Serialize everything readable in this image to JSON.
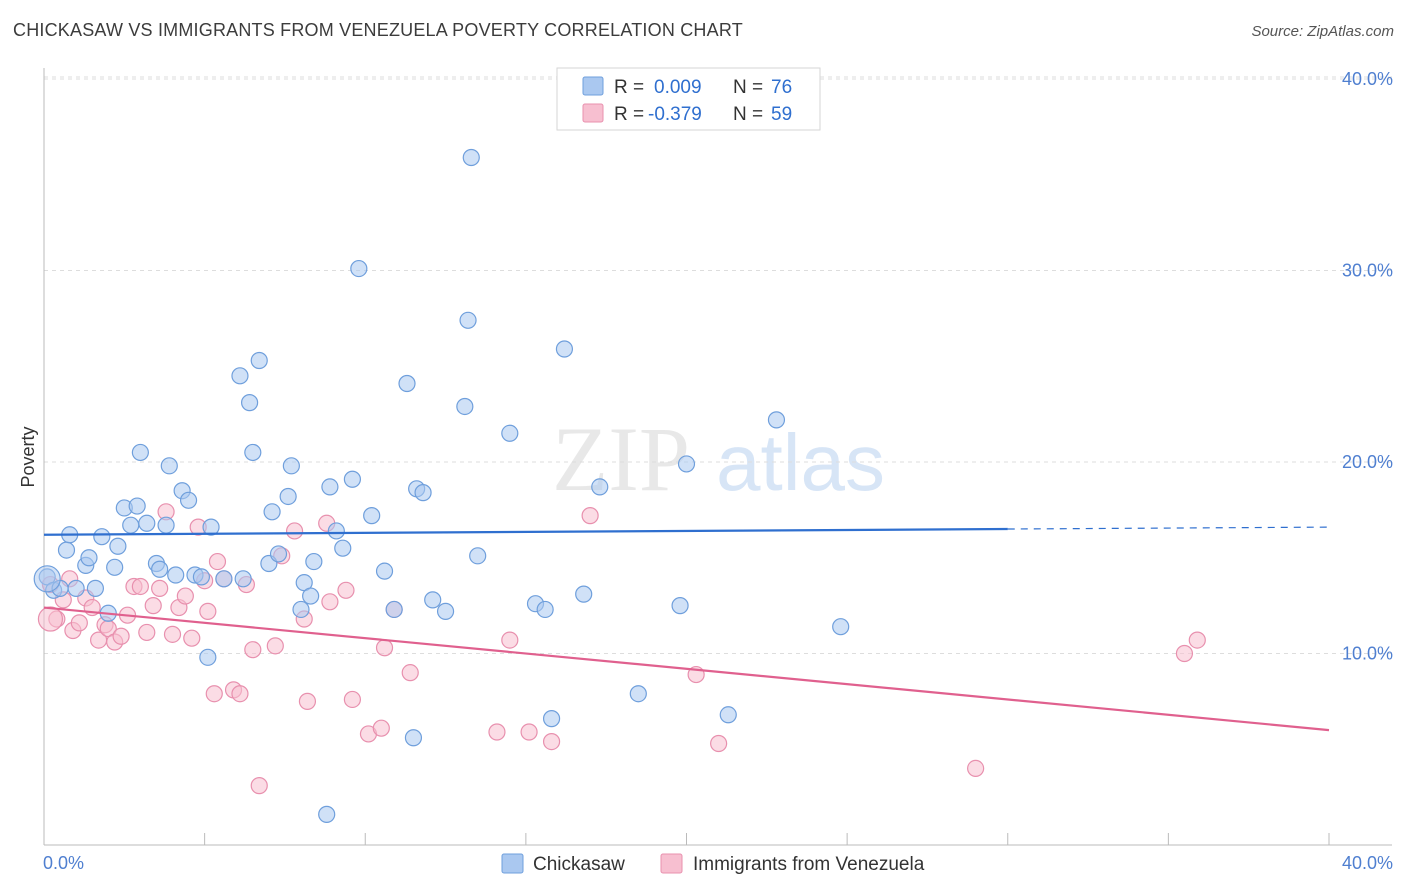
{
  "header": {
    "title": "CHICKASAW VS IMMIGRANTS FROM VENEZUELA POVERTY CORRELATION CHART",
    "source": "Source: ZipAtlas.com"
  },
  "watermark": {
    "zip": "ZIP",
    "atlas": "atlas"
  },
  "colors": {
    "blue_fill": "#aac8f0",
    "blue_stroke": "#6f9fdc",
    "blue_line": "#2f6fcf",
    "pink_fill": "#f7bfd0",
    "pink_stroke": "#e890ae",
    "pink_line": "#e0608e",
    "axis_text": "#4f7fd0",
    "grid": "#dddddd"
  },
  "chart_data": {
    "type": "scatter",
    "title": "CHICKASAW VS IMMIGRANTS FROM VENEZUELA POVERTY CORRELATION CHART",
    "xlabel": "",
    "ylabel": "Poverty",
    "xlim": [
      0,
      40
    ],
    "ylim": [
      0,
      40
    ],
    "x_tick_labels": [
      "0.0%",
      "40.0%"
    ],
    "y_ticks": [
      10,
      20,
      30,
      40
    ],
    "y_tick_labels": [
      "10.0%",
      "20.0%",
      "30.0%",
      "40.0%"
    ],
    "grid": true,
    "legend_position": "bottom-center",
    "stats": [
      {
        "series": "Chickasaw",
        "r_label": "R =",
        "r_value": "0.009",
        "n_label": "N =",
        "n_value": "76"
      },
      {
        "series": "Immigrants from Venezuela",
        "r_label": "R =",
        "r_value": "-0.379",
        "n_label": "N =",
        "n_value": "59"
      }
    ],
    "series": [
      {
        "name": "Chickasaw",
        "color": "#aac8f0",
        "trend": {
          "x0": 0,
          "y0": 16.2,
          "x1": 30,
          "y1": 16.5,
          "dash_to_x": 40,
          "dash_to_y": 16.6
        },
        "points": [
          [
            0.1,
            14.0
          ],
          [
            0.3,
            13.3
          ],
          [
            0.5,
            13.4
          ],
          [
            0.7,
            15.4
          ],
          [
            0.8,
            16.2
          ],
          [
            1.0,
            13.4
          ],
          [
            1.3,
            14.6
          ],
          [
            1.4,
            15.0
          ],
          [
            1.6,
            13.4
          ],
          [
            1.8,
            16.1
          ],
          [
            2.0,
            12.1
          ],
          [
            2.2,
            14.5
          ],
          [
            2.3,
            15.6
          ],
          [
            2.5,
            17.6
          ],
          [
            2.7,
            16.7
          ],
          [
            2.9,
            17.7
          ],
          [
            3.0,
            20.5
          ],
          [
            3.2,
            16.8
          ],
          [
            3.5,
            14.7
          ],
          [
            3.6,
            14.4
          ],
          [
            3.8,
            16.7
          ],
          [
            3.9,
            19.8
          ],
          [
            4.1,
            14.1
          ],
          [
            4.3,
            18.5
          ],
          [
            4.5,
            18.0
          ],
          [
            4.7,
            14.1
          ],
          [
            4.9,
            14.0
          ],
          [
            5.1,
            9.8
          ],
          [
            5.2,
            16.6
          ],
          [
            5.6,
            13.9
          ],
          [
            6.1,
            24.5
          ],
          [
            6.2,
            13.9
          ],
          [
            6.4,
            23.1
          ],
          [
            6.5,
            20.5
          ],
          [
            6.7,
            25.3
          ],
          [
            7.0,
            14.7
          ],
          [
            7.1,
            17.4
          ],
          [
            7.3,
            15.2
          ],
          [
            7.6,
            18.2
          ],
          [
            7.7,
            19.8
          ],
          [
            8.0,
            12.3
          ],
          [
            8.1,
            13.7
          ],
          [
            8.3,
            13.0
          ],
          [
            8.4,
            14.8
          ],
          [
            8.8,
            1.6
          ],
          [
            8.9,
            18.7
          ],
          [
            9.1,
            16.4
          ],
          [
            9.3,
            15.5
          ],
          [
            9.6,
            19.1
          ],
          [
            9.8,
            30.1
          ],
          [
            10.2,
            17.2
          ],
          [
            10.6,
            14.3
          ],
          [
            10.9,
            12.3
          ],
          [
            11.3,
            24.1
          ],
          [
            11.5,
            5.6
          ],
          [
            11.6,
            18.6
          ],
          [
            11.8,
            18.4
          ],
          [
            12.1,
            12.8
          ],
          [
            12.5,
            12.2
          ],
          [
            13.1,
            22.9
          ],
          [
            13.2,
            27.4
          ],
          [
            13.3,
            35.9
          ],
          [
            13.5,
            15.1
          ],
          [
            14.5,
            21.5
          ],
          [
            15.3,
            12.6
          ],
          [
            15.6,
            12.3
          ],
          [
            15.8,
            6.6
          ],
          [
            16.2,
            25.9
          ],
          [
            16.8,
            13.1
          ],
          [
            17.3,
            18.7
          ],
          [
            18.5,
            7.9
          ],
          [
            19.8,
            12.5
          ],
          [
            20.0,
            19.9
          ],
          [
            21.3,
            6.8
          ],
          [
            22.8,
            22.2
          ],
          [
            24.8,
            11.4
          ]
        ]
      },
      {
        "name": "Immigrants from Venezuela",
        "color": "#f7bfd0",
        "trend": {
          "x0": 0,
          "y0": 12.4,
          "x1": 40,
          "y1": 6.0
        },
        "points": [
          [
            0.2,
            13.6
          ],
          [
            0.4,
            11.8
          ],
          [
            0.6,
            12.8
          ],
          [
            0.8,
            13.9
          ],
          [
            0.9,
            11.2
          ],
          [
            1.1,
            11.6
          ],
          [
            1.3,
            12.9
          ],
          [
            1.5,
            12.4
          ],
          [
            1.7,
            10.7
          ],
          [
            1.9,
            11.5
          ],
          [
            2.0,
            11.3
          ],
          [
            2.2,
            10.6
          ],
          [
            2.4,
            10.9
          ],
          [
            2.6,
            12.0
          ],
          [
            2.8,
            13.5
          ],
          [
            3.0,
            13.5
          ],
          [
            3.2,
            11.1
          ],
          [
            3.4,
            12.5
          ],
          [
            3.6,
            13.4
          ],
          [
            3.8,
            17.4
          ],
          [
            4.0,
            11.0
          ],
          [
            4.2,
            12.4
          ],
          [
            4.4,
            13.0
          ],
          [
            4.6,
            10.8
          ],
          [
            4.8,
            16.6
          ],
          [
            5.0,
            13.8
          ],
          [
            5.1,
            12.2
          ],
          [
            5.3,
            7.9
          ],
          [
            5.4,
            14.8
          ],
          [
            5.6,
            13.9
          ],
          [
            5.9,
            8.1
          ],
          [
            6.1,
            7.9
          ],
          [
            6.3,
            13.6
          ],
          [
            6.5,
            10.2
          ],
          [
            6.7,
            3.1
          ],
          [
            7.2,
            10.4
          ],
          [
            7.4,
            15.1
          ],
          [
            7.8,
            16.4
          ],
          [
            8.1,
            11.8
          ],
          [
            8.2,
            7.5
          ],
          [
            8.8,
            16.8
          ],
          [
            8.9,
            12.7
          ],
          [
            9.4,
            13.3
          ],
          [
            9.6,
            7.6
          ],
          [
            10.1,
            5.8
          ],
          [
            10.5,
            6.1
          ],
          [
            10.6,
            10.3
          ],
          [
            10.9,
            12.3
          ],
          [
            11.4,
            9.0
          ],
          [
            14.1,
            5.9
          ],
          [
            14.5,
            10.7
          ],
          [
            15.1,
            5.9
          ],
          [
            15.8,
            5.4
          ],
          [
            17.0,
            17.2
          ],
          [
            20.3,
            8.9
          ],
          [
            21.0,
            5.3
          ],
          [
            29.0,
            4.0
          ],
          [
            35.5,
            10.0
          ],
          [
            35.9,
            10.7
          ]
        ]
      }
    ]
  }
}
